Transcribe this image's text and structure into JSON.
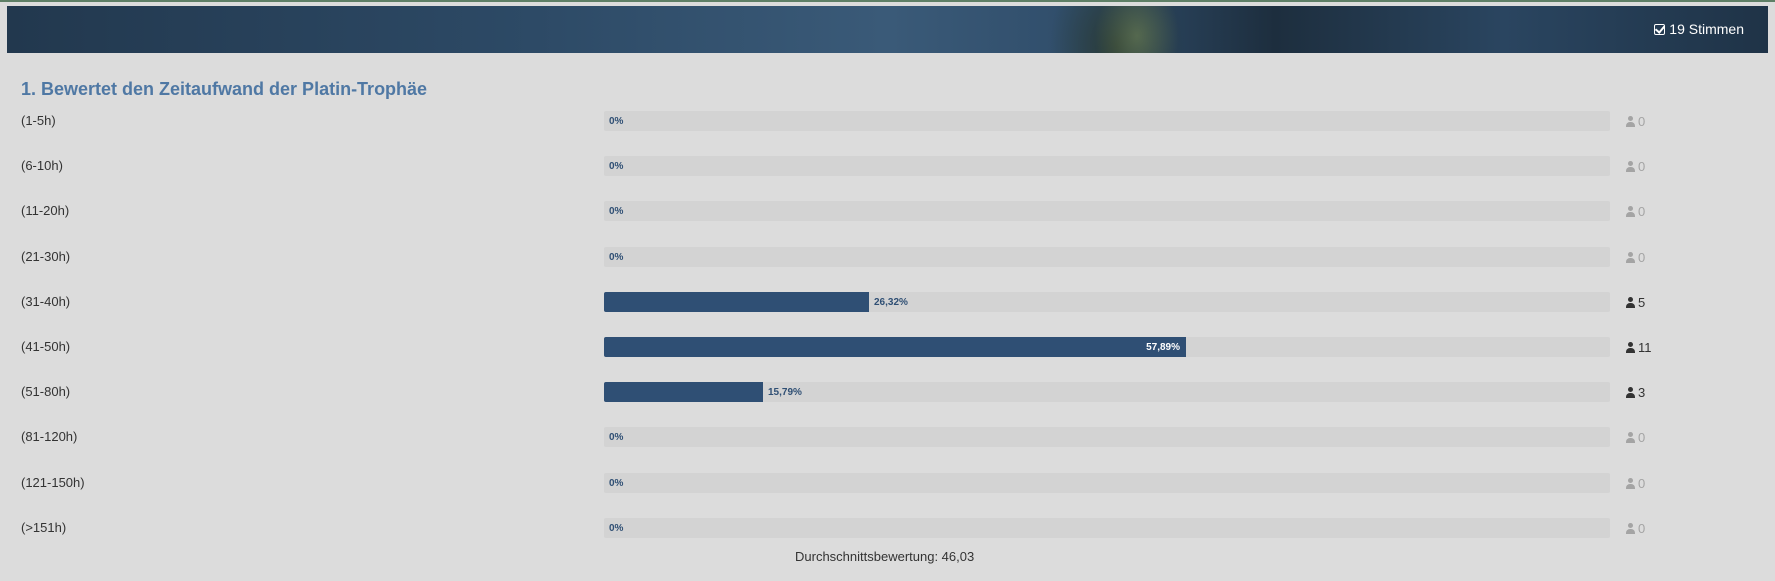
{
  "header": {
    "votes_label": "19 Stimmen"
  },
  "poll": {
    "title": "1. Bewertet den Zeitaufwand der Platin-Trophäe",
    "options": [
      {
        "label": "(1-5h)",
        "percent_label": "0%",
        "percent": 0,
        "count": "0"
      },
      {
        "label": "(6-10h)",
        "percent_label": "0%",
        "percent": 0,
        "count": "0"
      },
      {
        "label": "(11-20h)",
        "percent_label": "0%",
        "percent": 0,
        "count": "0"
      },
      {
        "label": "(21-30h)",
        "percent_label": "0%",
        "percent": 0,
        "count": "0"
      },
      {
        "label": "(31-40h)",
        "percent_label": "26,32%",
        "percent": 26.32,
        "count": "5"
      },
      {
        "label": "(41-50h)",
        "percent_label": "57,89%",
        "percent": 57.89,
        "count": "11"
      },
      {
        "label": "(51-80h)",
        "percent_label": "15,79%",
        "percent": 15.79,
        "count": "3"
      },
      {
        "label": "(81-120h)",
        "percent_label": "0%",
        "percent": 0,
        "count": "0"
      },
      {
        "label": "(121-150h)",
        "percent_label": "0%",
        "percent": 0,
        "count": "0"
      },
      {
        "label": "(>151h)",
        "percent_label": "0%",
        "percent": 0,
        "count": "0"
      }
    ],
    "average_label": "Durchschnittsbewertung: 46,03"
  },
  "colors": {
    "bar_fill": "#2f4f74",
    "title": "#4f78a4",
    "background": "#dcdcdc",
    "track": "#d3d3d3"
  },
  "icons": {
    "votes": "check-square-icon",
    "count": "user-icon"
  }
}
